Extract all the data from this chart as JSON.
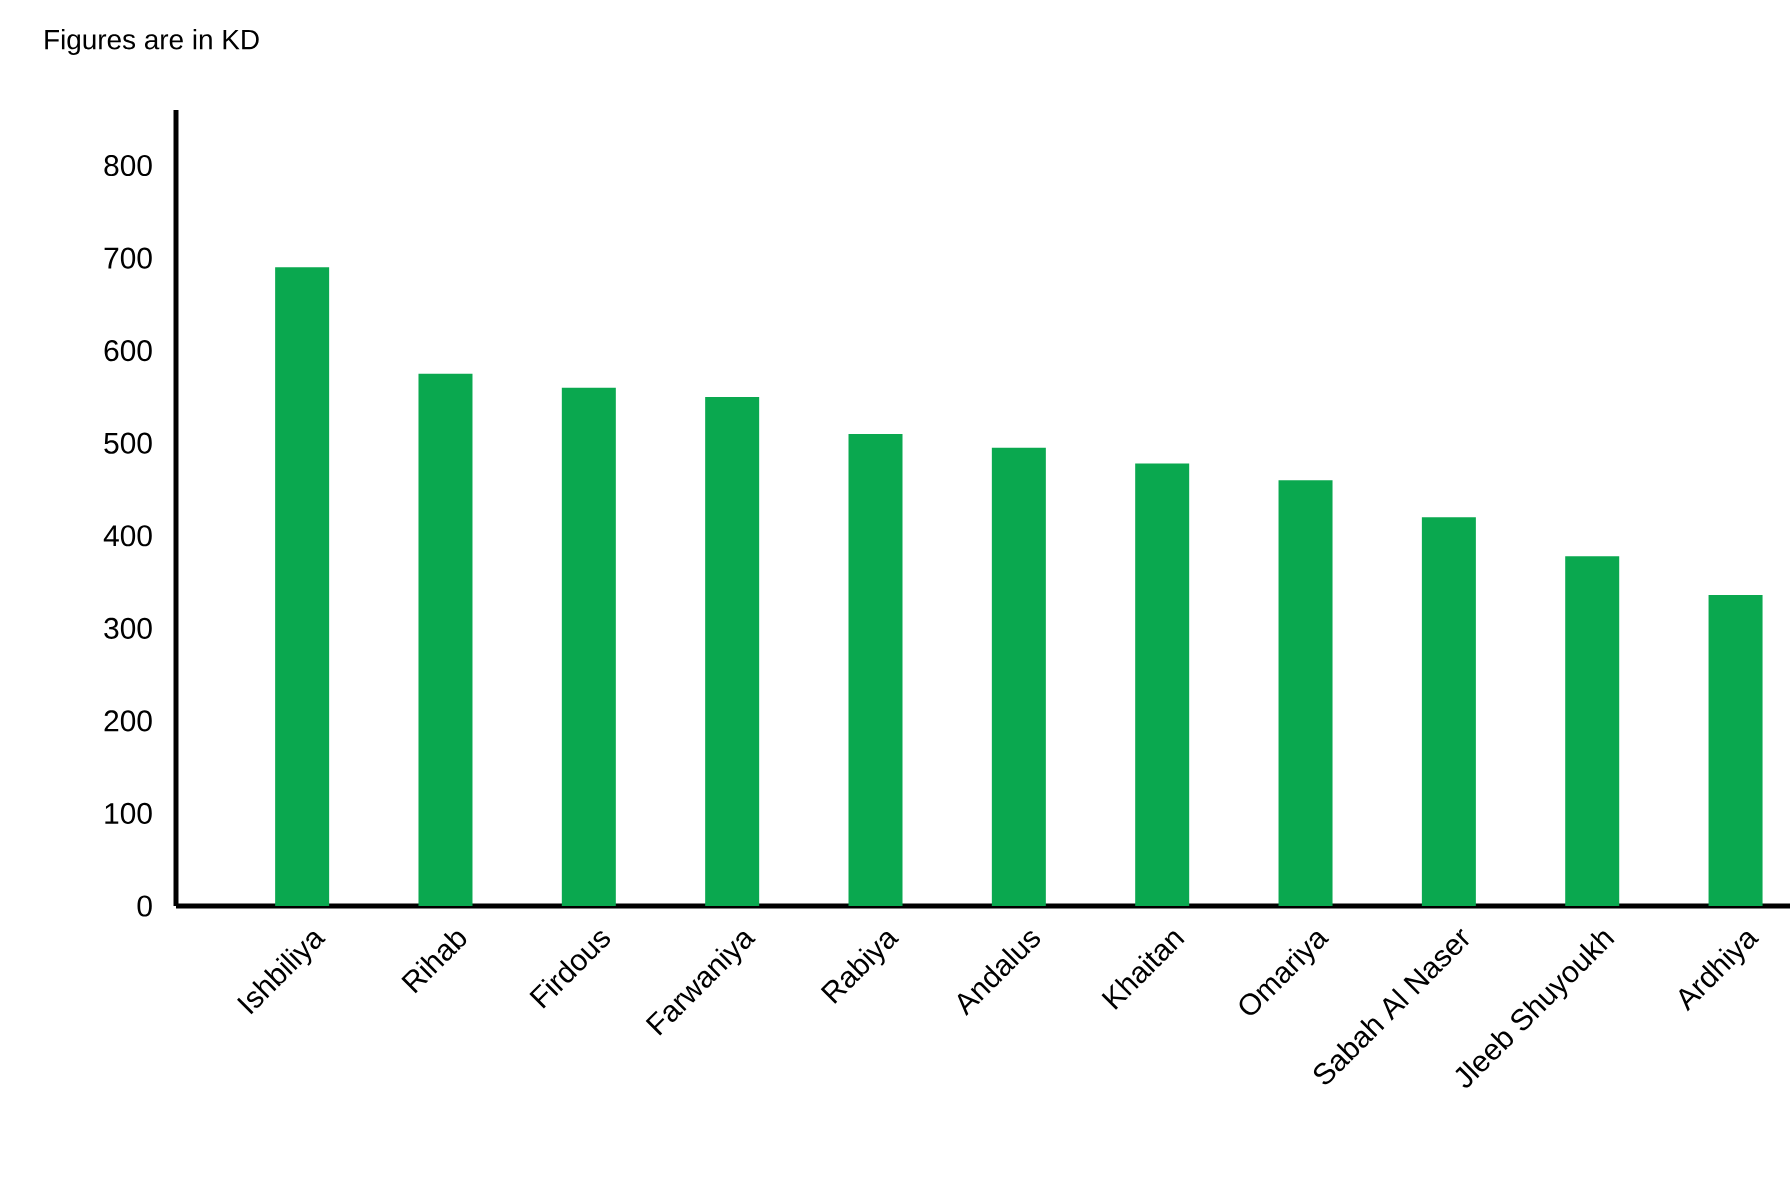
{
  "chart_data": {
    "type": "bar",
    "title": "Figures are in KD",
    "categories": [
      "Ishbiliya",
      "Rihab",
      "Firdous",
      "Farwaniya",
      "Rabiya",
      "Andalus",
      "Khaitan",
      "Omariya",
      "Sabah Al Naser",
      "Jleeb Shuyoukh",
      "Ardhiya"
    ],
    "values": [
      690,
      575,
      560,
      550,
      510,
      495,
      478,
      460,
      420,
      378,
      336
    ],
    "color": "#0aa84f",
    "ylim": [
      0,
      860
    ],
    "yticks": [
      0,
      100,
      200,
      300,
      400,
      500,
      600,
      700,
      800
    ],
    "grid": false
  }
}
